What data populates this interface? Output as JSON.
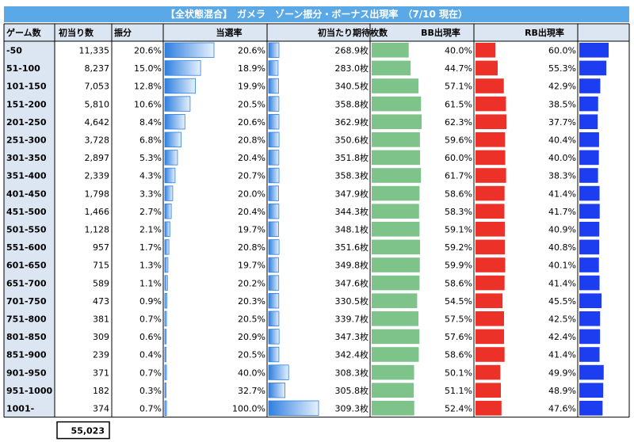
{
  "title": "【全状態混合】　ガメラ　ゾーン振分・ボーナス出現率　（7/10 現在）",
  "headers": {
    "games": "ゲーム数",
    "first_hits": "初当り数",
    "distribution": "振分",
    "win_rate": "当選率",
    "expected_medals": "初当たり期待枚数",
    "bb_rate": "BB出現率",
    "rb_rate": "RB出現率"
  },
  "total": "55,023",
  "colors": {
    "title_bar": "#5aa8e6",
    "header_bg": "#dce6f2",
    "blue_gradient_dark": "#2f7fe0",
    "blue_gradient_light": "#e6f1fc",
    "green": "#7dc38a",
    "red": "#ec3128",
    "blue": "#1c3ef0"
  },
  "chart_data": {
    "type": "table",
    "rows": [
      {
        "zone": "-50",
        "hits": "11,335",
        "dist": "20.6%",
        "dist_v": 20.6,
        "win": "20.6%",
        "win_v": 20.6,
        "medals": "268.9枚",
        "medals_v": 268.9,
        "bb": "40.0%",
        "bb_v": 40.0,
        "rb": "60.0%",
        "rb_v": 60.0
      },
      {
        "zone": "51-100",
        "hits": "8,237",
        "dist": "15.0%",
        "dist_v": 15.0,
        "win": "18.9%",
        "win_v": 18.9,
        "medals": "283.0枚",
        "medals_v": 283.0,
        "bb": "44.7%",
        "bb_v": 44.7,
        "rb": "55.3%",
        "rb_v": 55.3
      },
      {
        "zone": "101-150",
        "hits": "7,053",
        "dist": "12.8%",
        "dist_v": 12.8,
        "win": "19.9%",
        "win_v": 19.9,
        "medals": "340.5枚",
        "medals_v": 340.5,
        "bb": "57.1%",
        "bb_v": 57.1,
        "rb": "42.9%",
        "rb_v": 42.9
      },
      {
        "zone": "151-200",
        "hits": "5,810",
        "dist": "10.6%",
        "dist_v": 10.6,
        "win": "20.5%",
        "win_v": 20.5,
        "medals": "358.8枚",
        "medals_v": 358.8,
        "bb": "61.5%",
        "bb_v": 61.5,
        "rb": "38.5%",
        "rb_v": 38.5
      },
      {
        "zone": "201-250",
        "hits": "4,642",
        "dist": "8.4%",
        "dist_v": 8.4,
        "win": "20.6%",
        "win_v": 20.6,
        "medals": "362.9枚",
        "medals_v": 362.9,
        "bb": "62.3%",
        "bb_v": 62.3,
        "rb": "37.7%",
        "rb_v": 37.7
      },
      {
        "zone": "251-300",
        "hits": "3,728",
        "dist": "6.8%",
        "dist_v": 6.8,
        "win": "20.8%",
        "win_v": 20.8,
        "medals": "350.6枚",
        "medals_v": 350.6,
        "bb": "59.6%",
        "bb_v": 59.6,
        "rb": "40.4%",
        "rb_v": 40.4
      },
      {
        "zone": "301-350",
        "hits": "2,897",
        "dist": "5.3%",
        "dist_v": 5.3,
        "win": "20.4%",
        "win_v": 20.4,
        "medals": "351.8枚",
        "medals_v": 351.8,
        "bb": "60.0%",
        "bb_v": 60.0,
        "rb": "40.0%",
        "rb_v": 40.0
      },
      {
        "zone": "351-400",
        "hits": "2,339",
        "dist": "4.3%",
        "dist_v": 4.3,
        "win": "20.7%",
        "win_v": 20.7,
        "medals": "358.3枚",
        "medals_v": 358.3,
        "bb": "61.7%",
        "bb_v": 61.7,
        "rb": "38.3%",
        "rb_v": 38.3
      },
      {
        "zone": "401-450",
        "hits": "1,798",
        "dist": "3.3%",
        "dist_v": 3.3,
        "win": "20.0%",
        "win_v": 20.0,
        "medals": "347.9枚",
        "medals_v": 347.9,
        "bb": "58.6%",
        "bb_v": 58.6,
        "rb": "41.4%",
        "rb_v": 41.4
      },
      {
        "zone": "451-500",
        "hits": "1,466",
        "dist": "2.7%",
        "dist_v": 2.7,
        "win": "20.4%",
        "win_v": 20.4,
        "medals": "344.3枚",
        "medals_v": 344.3,
        "bb": "58.3%",
        "bb_v": 58.3,
        "rb": "41.7%",
        "rb_v": 41.7
      },
      {
        "zone": "501-550",
        "hits": "1,128",
        "dist": "2.1%",
        "dist_v": 2.1,
        "win": "19.7%",
        "win_v": 19.7,
        "medals": "348.1枚",
        "medals_v": 348.1,
        "bb": "59.1%",
        "bb_v": 59.1,
        "rb": "40.9%",
        "rb_v": 40.9
      },
      {
        "zone": "551-600",
        "hits": "957",
        "dist": "1.7%",
        "dist_v": 1.7,
        "win": "20.8%",
        "win_v": 20.8,
        "medals": "351.6枚",
        "medals_v": 351.6,
        "bb": "59.2%",
        "bb_v": 59.2,
        "rb": "40.8%",
        "rb_v": 40.8
      },
      {
        "zone": "601-650",
        "hits": "715",
        "dist": "1.3%",
        "dist_v": 1.3,
        "win": "19.7%",
        "win_v": 19.7,
        "medals": "349.8枚",
        "medals_v": 349.8,
        "bb": "59.9%",
        "bb_v": 59.9,
        "rb": "40.1%",
        "rb_v": 40.1
      },
      {
        "zone": "651-700",
        "hits": "589",
        "dist": "1.1%",
        "dist_v": 1.1,
        "win": "20.2%",
        "win_v": 20.2,
        "medals": "347.6枚",
        "medals_v": 347.6,
        "bb": "58.6%",
        "bb_v": 58.6,
        "rb": "41.4%",
        "rb_v": 41.4
      },
      {
        "zone": "701-750",
        "hits": "473",
        "dist": "0.9%",
        "dist_v": 0.9,
        "win": "20.3%",
        "win_v": 20.3,
        "medals": "330.5枚",
        "medals_v": 330.5,
        "bb": "54.5%",
        "bb_v": 54.5,
        "rb": "45.5%",
        "rb_v": 45.5
      },
      {
        "zone": "751-800",
        "hits": "381",
        "dist": "0.7%",
        "dist_v": 0.7,
        "win": "20.5%",
        "win_v": 20.5,
        "medals": "339.7枚",
        "medals_v": 339.7,
        "bb": "57.5%",
        "bb_v": 57.5,
        "rb": "42.5%",
        "rb_v": 42.5
      },
      {
        "zone": "801-850",
        "hits": "309",
        "dist": "0.6%",
        "dist_v": 0.6,
        "win": "20.9%",
        "win_v": 20.9,
        "medals": "347.3枚",
        "medals_v": 347.3,
        "bb": "57.6%",
        "bb_v": 57.6,
        "rb": "42.4%",
        "rb_v": 42.4
      },
      {
        "zone": "851-900",
        "hits": "239",
        "dist": "0.4%",
        "dist_v": 0.4,
        "win": "20.5%",
        "win_v": 20.5,
        "medals": "342.4枚",
        "medals_v": 342.4,
        "bb": "58.6%",
        "bb_v": 58.6,
        "rb": "41.4%",
        "rb_v": 41.4
      },
      {
        "zone": "901-950",
        "hits": "371",
        "dist": "0.7%",
        "dist_v": 0.7,
        "win": "40.0%",
        "win_v": 40.0,
        "medals": "308.3枚",
        "medals_v": 308.3,
        "bb": "50.1%",
        "bb_v": 50.1,
        "rb": "49.9%",
        "rb_v": 49.9
      },
      {
        "zone": "951-1000",
        "hits": "182",
        "dist": "0.3%",
        "dist_v": 0.3,
        "win": "32.7%",
        "win_v": 32.7,
        "medals": "305.8枚",
        "medals_v": 305.8,
        "bb": "51.1%",
        "bb_v": 51.1,
        "rb": "48.9%",
        "rb_v": 48.9
      },
      {
        "zone": "1001-",
        "hits": "374",
        "dist": "0.7%",
        "dist_v": 0.7,
        "win": "100.0%",
        "win_v": 100.0,
        "medals": "309.3枚",
        "medals_v": 309.3,
        "bb": "52.4%",
        "bb_v": 52.4,
        "rb": "47.6%",
        "rb_v": 47.6
      }
    ]
  }
}
